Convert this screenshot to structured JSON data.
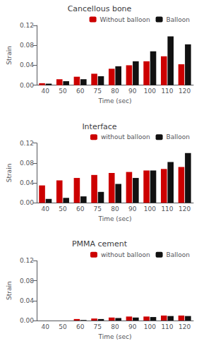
{
  "chart_data": [
    {
      "type": "bar",
      "title": "Cancellous bone",
      "categories": [
        "40",
        "50",
        "60",
        "75",
        "80",
        "90",
        "100",
        "110",
        "120"
      ],
      "series": [
        {
          "name": "Without balloon",
          "color": "#cc0000",
          "values": [
            0.004,
            0.012,
            0.017,
            0.023,
            0.033,
            0.04,
            0.048,
            0.058,
            0.042
          ]
        },
        {
          "name": "Balloon",
          "color": "#111111",
          "values": [
            0.003,
            0.008,
            0.012,
            0.018,
            0.038,
            0.048,
            0.068,
            0.098,
            0.082
          ]
        }
      ],
      "xlabel": "Time (sec)",
      "ylabel": "Strain",
      "ylim": [
        0,
        0.12
      ],
      "yticks": [
        {
          "value": 0,
          "label": "0.00"
        },
        0.04,
        0.08,
        0.12
      ],
      "grid": false,
      "legend": "upper right"
    },
    {
      "type": "bar",
      "title": "Interface",
      "categories": [
        "40",
        "50",
        "60",
        "75",
        "80",
        "90",
        "100",
        "110",
        "120"
      ],
      "series": [
        {
          "name": "without balloon",
          "color": "#cc0000",
          "values": [
            0.035,
            0.045,
            0.05,
            0.056,
            0.06,
            0.062,
            0.065,
            0.068,
            0.072
          ]
        },
        {
          "name": "Balloon",
          "color": "#111111",
          "values": [
            0.008,
            0.01,
            0.013,
            0.022,
            0.038,
            0.05,
            0.065,
            0.082,
            0.1
          ]
        }
      ],
      "xlabel": "Time (sec)",
      "ylabel": "Strain",
      "ylim": [
        0,
        0.12
      ],
      "yticks": [
        {
          "value": 0,
          "label": "0.00"
        },
        0.04,
        0.08,
        0.12
      ],
      "grid": false,
      "legend": "upper right"
    },
    {
      "type": "bar",
      "title": "PMMA cement",
      "categories": [
        "40",
        "50",
        "60",
        "75",
        "80",
        "90",
        "100",
        "110",
        "120"
      ],
      "series": [
        {
          "name": "without balloon",
          "color": "#cc0000",
          "values": [
            0.0,
            0.0,
            0.003,
            0.004,
            0.006,
            0.008,
            0.008,
            0.01,
            0.01
          ]
        },
        {
          "name": "Balloon",
          "color": "#111111",
          "values": [
            0.0,
            0.0,
            0.001,
            0.003,
            0.005,
            0.006,
            0.007,
            0.009,
            0.009
          ]
        }
      ],
      "xlabel": "Time (sec)",
      "ylabel": "Strain",
      "ylim": [
        0,
        0.12
      ],
      "yticks": [
        {
          "value": 0,
          "label": "0.00"
        },
        0.04,
        0.08,
        0.12
      ],
      "grid": false,
      "legend": "upper right"
    }
  ]
}
